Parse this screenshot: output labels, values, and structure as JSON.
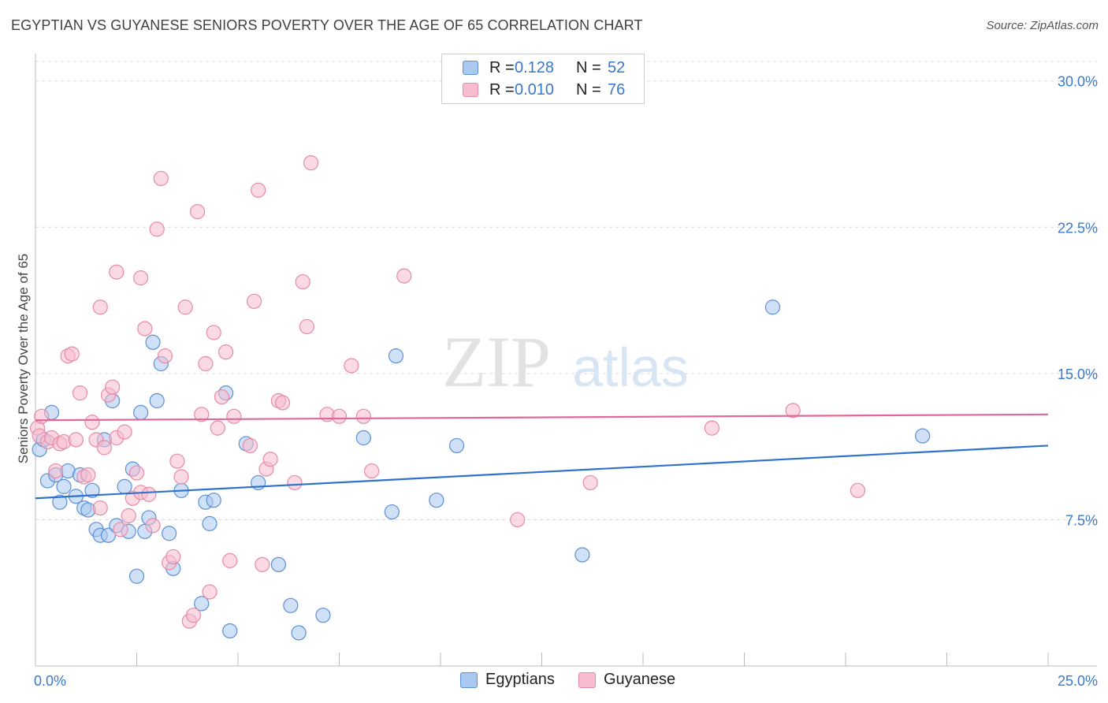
{
  "header": {
    "title": "EGYPTIAN VS GUYANESE SENIORS POVERTY OVER THE AGE OF 65 CORRELATION CHART",
    "source": "Source: ZipAtlas.com"
  },
  "legend_top": {
    "rows": [
      {
        "r_label": "R =",
        "r_value": "0.128",
        "n_label": "N =",
        "n_value": "52"
      },
      {
        "r_label": "R =",
        "r_value": "0.010",
        "n_label": "N =",
        "n_value": "76"
      }
    ]
  },
  "legend_bottom": {
    "items": [
      {
        "label": "Egyptians"
      },
      {
        "label": "Guyanese"
      }
    ]
  },
  "watermark": {
    "part1": "ZIP",
    "part2": "atlas"
  },
  "colors": {
    "egyptian_fill": "#aac8f0",
    "egyptian_stroke": "#5b8fd6",
    "egyptian_line": "#2f72cc",
    "guyanese_fill": "#f7bccd",
    "guyanese_stroke": "#e68aa6",
    "guyanese_line": "#e0689a",
    "tick_label": "#3a78c9",
    "grid": "#d9d9d9"
  },
  "chart_data": {
    "type": "scatter",
    "title": "EGYPTIAN VS GUYANESE SENIORS POVERTY OVER THE AGE OF 65 CORRELATION CHART",
    "xlabel": "",
    "ylabel": "Seniors Poverty Over the Age of 65",
    "xlim": [
      0,
      25
    ],
    "ylim": [
      0,
      31
    ],
    "x_tick_labels": [
      "0.0%",
      "25.0%"
    ],
    "y_ticks": [
      7.5,
      15.0,
      22.5,
      30.0
    ],
    "y_tick_labels": [
      "7.5%",
      "15.0%",
      "22.5%",
      "30.0%"
    ],
    "grid": "horizontal dashed",
    "legend": "top-center",
    "series": [
      {
        "name": "Egyptians",
        "r": 0.128,
        "n": 52,
        "trend": {
          "x": [
            0,
            25
          ],
          "y": [
            8.6,
            11.3
          ]
        },
        "points": [
          {
            "x": 0.1,
            "y": 11.1
          },
          {
            "x": 0.2,
            "y": 11.6
          },
          {
            "x": 0.3,
            "y": 9.5
          },
          {
            "x": 0.4,
            "y": 13.0
          },
          {
            "x": 0.5,
            "y": 9.8
          },
          {
            "x": 0.6,
            "y": 8.4
          },
          {
            "x": 0.7,
            "y": 9.2
          },
          {
            "x": 0.8,
            "y": 10.0
          },
          {
            "x": 1.0,
            "y": 8.7
          },
          {
            "x": 1.1,
            "y": 9.8
          },
          {
            "x": 1.2,
            "y": 8.1
          },
          {
            "x": 1.3,
            "y": 8.0
          },
          {
            "x": 1.4,
            "y": 9.0
          },
          {
            "x": 1.5,
            "y": 7.0
          },
          {
            "x": 1.6,
            "y": 6.7
          },
          {
            "x": 1.7,
            "y": 11.6
          },
          {
            "x": 1.8,
            "y": 6.7
          },
          {
            "x": 1.9,
            "y": 13.6
          },
          {
            "x": 2.0,
            "y": 7.2
          },
          {
            "x": 2.2,
            "y": 9.2
          },
          {
            "x": 2.3,
            "y": 6.9
          },
          {
            "x": 2.4,
            "y": 10.1
          },
          {
            "x": 2.5,
            "y": 4.6
          },
          {
            "x": 2.6,
            "y": 13.0
          },
          {
            "x": 2.7,
            "y": 6.9
          },
          {
            "x": 2.8,
            "y": 7.6
          },
          {
            "x": 2.9,
            "y": 16.6
          },
          {
            "x": 3.0,
            "y": 13.6
          },
          {
            "x": 3.1,
            "y": 15.5
          },
          {
            "x": 3.3,
            "y": 6.8
          },
          {
            "x": 3.4,
            "y": 5.0
          },
          {
            "x": 3.6,
            "y": 9.0
          },
          {
            "x": 4.1,
            "y": 3.2
          },
          {
            "x": 4.2,
            "y": 8.4
          },
          {
            "x": 4.3,
            "y": 7.3
          },
          {
            "x": 4.4,
            "y": 8.5
          },
          {
            "x": 4.7,
            "y": 14.0
          },
          {
            "x": 4.8,
            "y": 1.8
          },
          {
            "x": 5.2,
            "y": 11.4
          },
          {
            "x": 5.5,
            "y": 9.4
          },
          {
            "x": 6.0,
            "y": 5.2
          },
          {
            "x": 6.3,
            "y": 3.1
          },
          {
            "x": 6.5,
            "y": 1.7
          },
          {
            "x": 7.1,
            "y": 2.6
          },
          {
            "x": 8.1,
            "y": 11.7
          },
          {
            "x": 8.8,
            "y": 7.9
          },
          {
            "x": 8.9,
            "y": 15.9
          },
          {
            "x": 9.9,
            "y": 8.5
          },
          {
            "x": 10.4,
            "y": 11.3
          },
          {
            "x": 13.5,
            "y": 5.7
          },
          {
            "x": 18.2,
            "y": 18.4
          },
          {
            "x": 21.9,
            "y": 11.8
          }
        ]
      },
      {
        "name": "Guyanese",
        "r": 0.01,
        "n": 76,
        "trend": {
          "x": [
            0,
            25
          ],
          "y": [
            12.6,
            12.9
          ]
        },
        "points": [
          {
            "x": 0.05,
            "y": 12.2
          },
          {
            "x": 0.1,
            "y": 11.8
          },
          {
            "x": 0.15,
            "y": 12.8
          },
          {
            "x": 0.3,
            "y": 11.5
          },
          {
            "x": 0.4,
            "y": 11.7
          },
          {
            "x": 0.5,
            "y": 10.0
          },
          {
            "x": 0.6,
            "y": 11.4
          },
          {
            "x": 0.7,
            "y": 11.5
          },
          {
            "x": 0.8,
            "y": 15.9
          },
          {
            "x": 0.9,
            "y": 16.0
          },
          {
            "x": 1.0,
            "y": 11.6
          },
          {
            "x": 1.1,
            "y": 14.0
          },
          {
            "x": 1.2,
            "y": 9.7
          },
          {
            "x": 1.3,
            "y": 9.8
          },
          {
            "x": 1.4,
            "y": 12.5
          },
          {
            "x": 1.5,
            "y": 11.6
          },
          {
            "x": 1.6,
            "y": 18.4
          },
          {
            "x": 1.6,
            "y": 8.1
          },
          {
            "x": 1.7,
            "y": 11.2
          },
          {
            "x": 1.8,
            "y": 13.9
          },
          {
            "x": 1.9,
            "y": 14.3
          },
          {
            "x": 2.0,
            "y": 11.7
          },
          {
            "x": 2.0,
            "y": 20.2
          },
          {
            "x": 2.1,
            "y": 7.0
          },
          {
            "x": 2.2,
            "y": 12.0
          },
          {
            "x": 2.3,
            "y": 7.7
          },
          {
            "x": 2.4,
            "y": 8.6
          },
          {
            "x": 2.5,
            "y": 9.9
          },
          {
            "x": 2.6,
            "y": 8.9
          },
          {
            "x": 2.6,
            "y": 19.9
          },
          {
            "x": 2.7,
            "y": 17.3
          },
          {
            "x": 2.8,
            "y": 8.8
          },
          {
            "x": 2.9,
            "y": 7.2
          },
          {
            "x": 3.0,
            "y": 22.4
          },
          {
            "x": 3.1,
            "y": 25.0
          },
          {
            "x": 3.2,
            "y": 15.9
          },
          {
            "x": 3.3,
            "y": 5.3
          },
          {
            "x": 3.4,
            "y": 5.6
          },
          {
            "x": 3.5,
            "y": 10.5
          },
          {
            "x": 3.6,
            "y": 9.7
          },
          {
            "x": 3.7,
            "y": 18.4
          },
          {
            "x": 3.8,
            "y": 2.3
          },
          {
            "x": 3.9,
            "y": 2.6
          },
          {
            "x": 4.0,
            "y": 23.3
          },
          {
            "x": 4.1,
            "y": 12.9
          },
          {
            "x": 4.2,
            "y": 15.5
          },
          {
            "x": 4.3,
            "y": 3.8
          },
          {
            "x": 4.4,
            "y": 17.1
          },
          {
            "x": 4.5,
            "y": 12.2
          },
          {
            "x": 4.6,
            "y": 13.8
          },
          {
            "x": 4.7,
            "y": 16.1
          },
          {
            "x": 4.8,
            "y": 5.4
          },
          {
            "x": 4.9,
            "y": 12.8
          },
          {
            "x": 5.3,
            "y": 11.3
          },
          {
            "x": 5.4,
            "y": 18.7
          },
          {
            "x": 5.5,
            "y": 24.4
          },
          {
            "x": 5.6,
            "y": 5.2
          },
          {
            "x": 5.7,
            "y": 10.1
          },
          {
            "x": 5.8,
            "y": 10.6
          },
          {
            "x": 6.0,
            "y": 13.6
          },
          {
            "x": 6.1,
            "y": 13.5
          },
          {
            "x": 6.4,
            "y": 9.4
          },
          {
            "x": 6.6,
            "y": 19.7
          },
          {
            "x": 6.7,
            "y": 17.4
          },
          {
            "x": 6.8,
            "y": 25.8
          },
          {
            "x": 7.2,
            "y": 12.9
          },
          {
            "x": 7.5,
            "y": 12.8
          },
          {
            "x": 7.8,
            "y": 15.4
          },
          {
            "x": 8.1,
            "y": 12.8
          },
          {
            "x": 8.3,
            "y": 10.0
          },
          {
            "x": 9.1,
            "y": 20.0
          },
          {
            "x": 11.9,
            "y": 7.5
          },
          {
            "x": 13.7,
            "y": 9.4
          },
          {
            "x": 16.7,
            "y": 12.2
          },
          {
            "x": 18.7,
            "y": 13.1
          },
          {
            "x": 20.3,
            "y": 9.0
          }
        ]
      }
    ]
  }
}
